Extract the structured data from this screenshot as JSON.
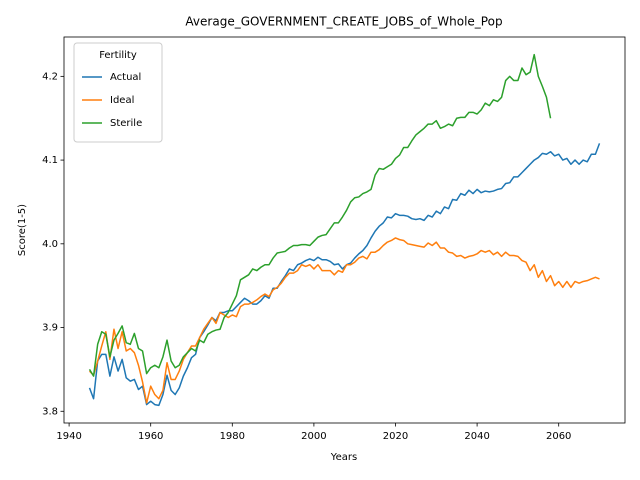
{
  "chart_data": {
    "type": "line",
    "title": "Average_GOVERNMENT_CREATE_JOBS_of_Whole_Pop",
    "xlabel": "Years",
    "ylabel": "Score(1-5)",
    "x": [
      1945,
      1946,
      1947,
      1948,
      1949,
      1950,
      1951,
      1952,
      1953,
      1954,
      1955,
      1956,
      1957,
      1958,
      1959,
      1960,
      1961,
      1962,
      1963,
      1964,
      1965,
      1966,
      1967,
      1968,
      1969,
      1970,
      1971,
      1972,
      1973,
      1974,
      1975,
      1976,
      1977,
      1978,
      1979,
      1980,
      1981,
      1982,
      1983,
      1984,
      1985,
      1986,
      1987,
      1988,
      1989,
      1990,
      1991,
      1992,
      1993,
      1994,
      1995,
      1996,
      1997,
      1998,
      1999,
      2000,
      2001,
      2002,
      2003,
      2004,
      2005,
      2006,
      2007,
      2008,
      2009,
      2010,
      2011,
      2012,
      2013,
      2014,
      2015,
      2016,
      2017,
      2018,
      2019,
      2020,
      2021,
      2022,
      2023,
      2024,
      2025,
      2026,
      2027,
      2028,
      2029,
      2030,
      2031,
      2032,
      2033,
      2034,
      2035,
      2036,
      2037,
      2038,
      2039,
      2040,
      2041,
      2042,
      2043,
      2044,
      2045,
      2046,
      2047,
      2048,
      2049,
      2050,
      2051,
      2052,
      2053,
      2054,
      2055,
      2056,
      2057,
      2058,
      2059,
      2060,
      2061,
      2062,
      2063,
      2064,
      2065,
      2066,
      2067,
      2068,
      2069,
      2070
    ],
    "series": [
      {
        "name": "Actual",
        "color": "#1f77b4",
        "values": [
          3.828,
          3.815,
          3.86,
          3.868,
          3.868,
          3.842,
          3.865,
          3.848,
          3.862,
          3.84,
          3.836,
          3.838,
          3.826,
          3.83,
          3.808,
          3.812,
          3.808,
          3.807,
          3.82,
          3.843,
          3.825,
          3.82,
          3.828,
          3.842,
          3.852,
          3.864,
          3.868,
          3.888,
          3.895,
          3.903,
          3.912,
          3.908,
          3.918,
          3.918,
          3.92,
          3.92,
          3.925,
          3.93,
          3.935,
          3.932,
          3.928,
          3.928,
          3.932,
          3.938,
          3.935,
          3.947,
          3.947,
          3.955,
          3.962,
          3.97,
          3.968,
          3.975,
          3.977,
          3.98,
          3.982,
          3.98,
          3.984,
          3.981,
          3.981,
          3.979,
          3.975,
          3.976,
          3.97,
          3.975,
          3.977,
          3.983,
          3.988,
          3.992,
          3.998,
          4.007,
          4.015,
          4.021,
          4.025,
          4.032,
          4.031,
          4.036,
          4.034,
          4.034,
          4.033,
          4.03,
          4.029,
          4.03,
          4.028,
          4.034,
          4.032,
          4.039,
          4.036,
          4.044,
          4.042,
          4.053,
          4.052,
          4.06,
          4.058,
          4.064,
          4.06,
          4.065,
          4.061,
          4.063,
          4.062,
          4.063,
          4.065,
          4.066,
          4.072,
          4.073,
          4.08,
          4.08,
          4.085,
          4.09,
          4.095,
          4.1,
          4.103,
          4.108,
          4.107,
          4.11,
          4.105,
          4.107,
          4.1,
          4.102,
          4.095,
          4.1,
          4.095,
          4.1,
          4.098,
          4.107,
          4.107,
          4.12
        ]
      },
      {
        "name": "Ideal",
        "color": "#ff7f0e",
        "values": [
          3.848,
          3.843,
          3.86,
          3.878,
          3.895,
          3.862,
          3.898,
          3.875,
          3.895,
          3.872,
          3.875,
          3.87,
          3.855,
          3.835,
          3.81,
          3.83,
          3.82,
          3.815,
          3.825,
          3.858,
          3.838,
          3.838,
          3.848,
          3.862,
          3.87,
          3.878,
          3.878,
          3.888,
          3.898,
          3.905,
          3.912,
          3.905,
          3.918,
          3.915,
          3.912,
          3.915,
          3.913,
          3.925,
          3.928,
          3.928,
          3.93,
          3.933,
          3.937,
          3.94,
          3.937,
          3.945,
          3.948,
          3.953,
          3.96,
          3.965,
          3.965,
          3.968,
          3.975,
          3.973,
          3.975,
          3.97,
          3.975,
          3.968,
          3.968,
          3.968,
          3.963,
          3.968,
          3.966,
          3.975,
          3.975,
          3.978,
          3.983,
          3.985,
          3.982,
          3.99,
          3.99,
          3.993,
          3.998,
          4.002,
          4.004,
          4.007,
          4.005,
          4.004,
          4.0,
          3.999,
          3.998,
          3.997,
          3.996,
          4.001,
          3.998,
          4.002,
          3.995,
          3.995,
          3.99,
          3.989,
          3.985,
          3.986,
          3.983,
          3.985,
          3.986,
          3.988,
          3.992,
          3.99,
          3.992,
          3.987,
          3.99,
          3.985,
          3.99,
          3.986,
          3.986,
          3.985,
          3.98,
          3.978,
          3.968,
          3.975,
          3.96,
          3.968,
          3.955,
          3.962,
          3.95,
          3.955,
          3.948,
          3.955,
          3.948,
          3.955,
          3.953,
          3.955,
          3.956,
          3.958,
          3.96,
          3.958
        ]
      },
      {
        "name": "Sterile",
        "color": "#2ca02c",
        "values": [
          3.85,
          3.842,
          3.88,
          3.895,
          3.892,
          3.865,
          3.885,
          3.893,
          3.902,
          3.882,
          3.88,
          3.893,
          3.875,
          3.872,
          3.845,
          3.852,
          3.855,
          3.852,
          3.865,
          3.885,
          3.86,
          3.852,
          3.855,
          3.865,
          3.87,
          3.875,
          3.872,
          3.885,
          3.882,
          3.892,
          3.895,
          3.897,
          3.898,
          3.912,
          3.918,
          3.928,
          3.938,
          3.957,
          3.96,
          3.963,
          3.97,
          3.968,
          3.972,
          3.975,
          3.975,
          3.983,
          3.989,
          3.99,
          3.991,
          3.995,
          3.998,
          3.998,
          3.999,
          3.999,
          3.998,
          4.003,
          4.008,
          4.01,
          4.011,
          4.018,
          4.025,
          4.025,
          4.032,
          4.04,
          4.05,
          4.055,
          4.056,
          4.06,
          4.062,
          4.065,
          4.082,
          4.09,
          4.089,
          4.092,
          4.095,
          4.102,
          4.106,
          4.115,
          4.115,
          4.123,
          4.13,
          4.134,
          4.138,
          4.143,
          4.143,
          4.147,
          4.138,
          4.14,
          4.143,
          4.141,
          4.15,
          4.151,
          4.151,
          4.157,
          4.157,
          4.155,
          4.16,
          4.168,
          4.165,
          4.172,
          4.17,
          4.175,
          4.195,
          4.2,
          4.195,
          4.195,
          4.21,
          4.202,
          4.205,
          4.226,
          4.2,
          4.188,
          4.175,
          4.15,
          null,
          null,
          null,
          null,
          null,
          null,
          null,
          null,
          null,
          null,
          null,
          null
        ]
      }
    ],
    "xlim": [
      1938.75,
      2076.25
    ],
    "xticks": [
      1940,
      1960,
      1980,
      2000,
      2020,
      2040,
      2060
    ],
    "ylim": [
      3.786,
      4.247
    ],
    "yticks": [
      3.8,
      3.9,
      {
        "value": 4,
        "label": "4.0"
      },
      4.1,
      4.2
    ],
    "legend": {
      "title": "Fertility",
      "loc": "upper left"
    }
  }
}
